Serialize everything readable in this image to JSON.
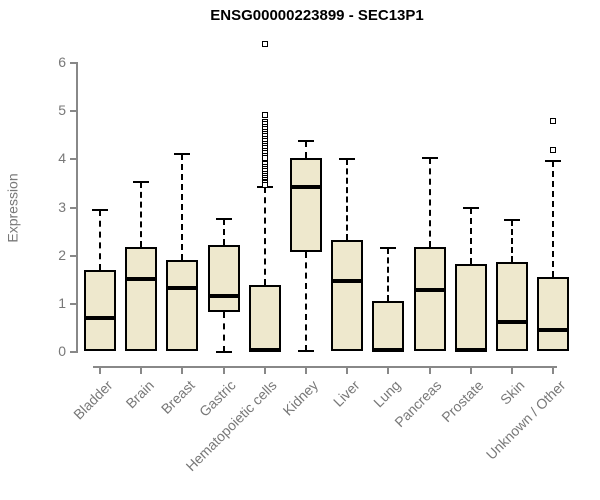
{
  "figure": {
    "background": "#ffffff",
    "axis_color": "#888888",
    "axis_text_color": "#787878",
    "title_color": "#000000"
  },
  "chart_data": {
    "type": "boxplot",
    "title": "ENSG00000223899 - SEC13P1",
    "xlabel": "",
    "ylabel": "Expression",
    "ylim": [
      0,
      6
    ],
    "yticks": [
      0,
      1,
      2,
      3,
      4,
      5,
      6
    ],
    "grid": false,
    "legend": null,
    "box_fill": "#EEE8CD",
    "box_border": "#000000",
    "median_color": "#000000",
    "whisker_style": "dashed",
    "outlier_marker": "open-square",
    "categories": [
      "Bladder",
      "Brain",
      "Breast",
      "Gastric",
      "Hematopoietic cells",
      "Kidney",
      "Liver",
      "Lung",
      "Pancreas",
      "Prostate",
      "Skin",
      "Unknown / Other"
    ],
    "boxes": [
      {
        "label": "Bladder",
        "whisker_low": 0.02,
        "q1": 0.02,
        "median": 0.7,
        "q3": 1.7,
        "whisker_high": 2.95,
        "outliers": []
      },
      {
        "label": "Brain",
        "whisker_low": 0.02,
        "q1": 0.02,
        "median": 1.52,
        "q3": 2.18,
        "whisker_high": 3.53,
        "outliers": []
      },
      {
        "label": "Breast",
        "whisker_low": 0.02,
        "q1": 0.02,
        "median": 1.33,
        "q3": 1.9,
        "whisker_high": 4.12,
        "outliers": []
      },
      {
        "label": "Gastric",
        "whisker_low": 0.0,
        "q1": 0.83,
        "median": 1.15,
        "q3": 2.23,
        "whisker_high": 2.77,
        "outliers": []
      },
      {
        "label": "Hematopoietic cells",
        "whisker_low": 0.0,
        "q1": 0.0,
        "median": 0.03,
        "q3": 1.38,
        "whisker_high": 3.42,
        "outliers": [
          6.41,
          4.92,
          4.78,
          4.73,
          4.68,
          4.63,
          4.58,
          4.53,
          4.48,
          4.43,
          4.38,
          4.33,
          4.28,
          4.23,
          4.18,
          4.13,
          4.08,
          4.03,
          3.9,
          3.85,
          3.8,
          3.75,
          3.7,
          3.66,
          3.62,
          3.58,
          3.54,
          3.5,
          3.46
        ]
      },
      {
        "label": "Kidney",
        "whisker_low": 0.02,
        "q1": 2.08,
        "median": 3.43,
        "q3": 4.03,
        "whisker_high": 4.38,
        "outliers": []
      },
      {
        "label": "Liver",
        "whisker_low": 0.02,
        "q1": 0.02,
        "median": 1.47,
        "q3": 2.33,
        "whisker_high": 4.0,
        "outliers": []
      },
      {
        "label": "Lung",
        "whisker_low": 0.0,
        "q1": 0.0,
        "median": 0.03,
        "q3": 1.05,
        "whisker_high": 2.16,
        "outliers": []
      },
      {
        "label": "Pancreas",
        "whisker_low": 0.02,
        "q1": 0.02,
        "median": 1.28,
        "q3": 2.17,
        "whisker_high": 4.02,
        "outliers": []
      },
      {
        "label": "Prostate",
        "whisker_low": 0.0,
        "q1": 0.0,
        "median": 0.03,
        "q3": 1.82,
        "whisker_high": 2.98,
        "outliers": []
      },
      {
        "label": "Skin",
        "whisker_low": 0.02,
        "q1": 0.02,
        "median": 0.62,
        "q3": 1.87,
        "whisker_high": 2.74,
        "outliers": []
      },
      {
        "label": "Unknown / Other",
        "whisker_low": 0.02,
        "q1": 0.02,
        "median": 0.45,
        "q3": 1.56,
        "whisker_high": 3.97,
        "outliers": [
          4.79,
          4.2
        ]
      }
    ]
  }
}
